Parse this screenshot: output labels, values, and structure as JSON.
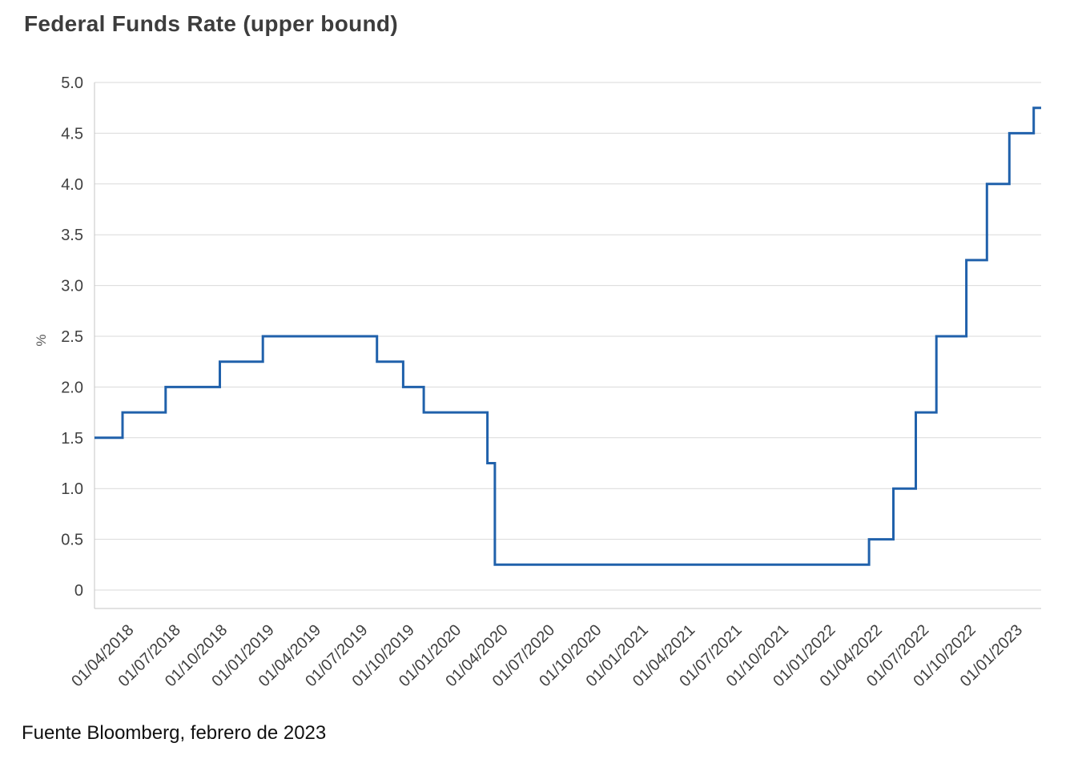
{
  "chart_data": {
    "type": "line",
    "line_style": "step",
    "title": "Federal Funds Rate (upper bound)",
    "source": "Fuente Bloomberg, febrero de 2023",
    "xlabel": "",
    "ylabel": "%",
    "ylim": [
      0,
      5
    ],
    "xlim": [
      2018.07,
      2023.13
    ],
    "grid": "horizontal",
    "legend": "none",
    "colors": {
      "line": "#2061ab",
      "grid": "#d9d9d9",
      "axis": "#c6c6c6",
      "tick_text": "#404040",
      "title_text": "#3d3d3d",
      "source_text": "#111111"
    },
    "y_ticks": [
      {
        "v": 0,
        "label": "0"
      },
      {
        "v": 0.5,
        "label": "0.5"
      },
      {
        "v": 1,
        "label": "1.0"
      },
      {
        "v": 1.5,
        "label": "1.5"
      },
      {
        "v": 2,
        "label": "2.0"
      },
      {
        "v": 2.5,
        "label": "2.5"
      },
      {
        "v": 3,
        "label": "3.0"
      },
      {
        "v": 3.5,
        "label": "3.5"
      },
      {
        "v": 4,
        "label": "4.0"
      },
      {
        "v": 4.5,
        "label": "4.5"
      },
      {
        "v": 5,
        "label": "5.0"
      }
    ],
    "x_ticks": [
      {
        "x": 2018.25,
        "label": "01/04/2018"
      },
      {
        "x": 2018.5,
        "label": "01/07/2018"
      },
      {
        "x": 2018.75,
        "label": "01/10/2018"
      },
      {
        "x": 2019.0,
        "label": "01/01/2019"
      },
      {
        "x": 2019.25,
        "label": "01/04/2019"
      },
      {
        "x": 2019.5,
        "label": "01/07/2019"
      },
      {
        "x": 2019.75,
        "label": "01/10/2019"
      },
      {
        "x": 2020.0,
        "label": "01/01/2020"
      },
      {
        "x": 2020.25,
        "label": "01/04/2020"
      },
      {
        "x": 2020.5,
        "label": "01/07/2020"
      },
      {
        "x": 2020.75,
        "label": "01/10/2020"
      },
      {
        "x": 2021.0,
        "label": "01/01/2021"
      },
      {
        "x": 2021.25,
        "label": "01/04/2021"
      },
      {
        "x": 2021.5,
        "label": "01/07/2021"
      },
      {
        "x": 2021.75,
        "label": "01/10/2021"
      },
      {
        "x": 2022.0,
        "label": "01/01/2022"
      },
      {
        "x": 2022.25,
        "label": "01/04/2022"
      },
      {
        "x": 2022.5,
        "label": "01/07/2022"
      },
      {
        "x": 2022.75,
        "label": "01/10/2022"
      },
      {
        "x": 2023.0,
        "label": "01/01/2023"
      }
    ],
    "series": [
      {
        "name": "Federal Funds Rate (upper bound)",
        "unit": "%",
        "steps": [
          {
            "x": 2018.07,
            "date": "01/02/2018",
            "value": 1.5
          },
          {
            "x": 2018.22,
            "date": "22/03/2018",
            "value": 1.75
          },
          {
            "x": 2018.45,
            "date": "14/06/2018",
            "value": 2.0
          },
          {
            "x": 2018.74,
            "date": "27/09/2018",
            "value": 2.25
          },
          {
            "x": 2018.97,
            "date": "20/12/2018",
            "value": 2.5
          },
          {
            "x": 2019.58,
            "date": "01/08/2019",
            "value": 2.25
          },
          {
            "x": 2019.72,
            "date": "19/09/2019",
            "value": 2.0
          },
          {
            "x": 2019.83,
            "date": "31/10/2019",
            "value": 1.75
          },
          {
            "x": 2020.17,
            "date": "04/03/2020",
            "value": 1.25
          },
          {
            "x": 2020.21,
            "date": "16/03/2020",
            "value": 0.25
          },
          {
            "x": 2022.21,
            "date": "17/03/2022",
            "value": 0.5
          },
          {
            "x": 2022.34,
            "date": "05/05/2022",
            "value": 1.0
          },
          {
            "x": 2022.46,
            "date": "16/06/2022",
            "value": 1.75
          },
          {
            "x": 2022.57,
            "date": "28/07/2022",
            "value": 2.5
          },
          {
            "x": 2022.73,
            "date": "22/09/2022",
            "value": 3.25
          },
          {
            "x": 2022.84,
            "date": "03/11/2022",
            "value": 4.0
          },
          {
            "x": 2022.96,
            "date": "15/12/2022",
            "value": 4.5
          },
          {
            "x": 2023.09,
            "date": "02/02/2023",
            "value": 4.75
          }
        ]
      }
    ]
  }
}
